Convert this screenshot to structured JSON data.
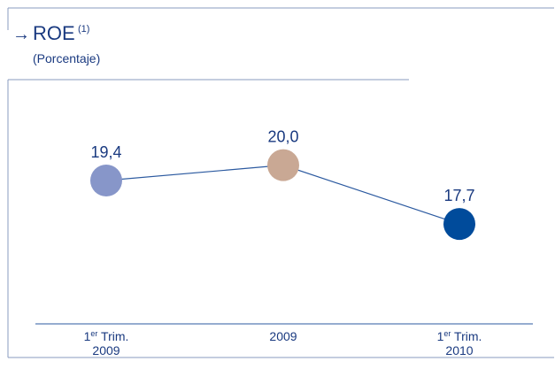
{
  "header": {
    "arrow": "→",
    "title": "ROE",
    "title_note": "(1)",
    "subtitle": "(Porcentaje)"
  },
  "colors": {
    "frame": "#8a9bbf",
    "line": "#2c5aa0",
    "label": "#1a3a80",
    "axis_text": "#1a3a80"
  },
  "chart_data": {
    "type": "line",
    "title": "ROE",
    "subtitle": "(Porcentaje)",
    "categories": [
      {
        "main": "1",
        "sup": "er",
        "rest": " Trim.",
        "line2": "2009"
      },
      {
        "main": "2009",
        "sup": "",
        "rest": "",
        "line2": ""
      },
      {
        "main": "1",
        "sup": "er",
        "rest": " Trim.",
        "line2": "2010"
      }
    ],
    "values": [
      19.4,
      20.0,
      17.7
    ],
    "data_labels": [
      "19,4",
      "20,0",
      "17,7"
    ],
    "point_colors": [
      "#8796c9",
      "#c9a894",
      "#004b9b"
    ],
    "ylim": [
      14,
      23
    ],
    "grid": false,
    "legend": "none"
  }
}
